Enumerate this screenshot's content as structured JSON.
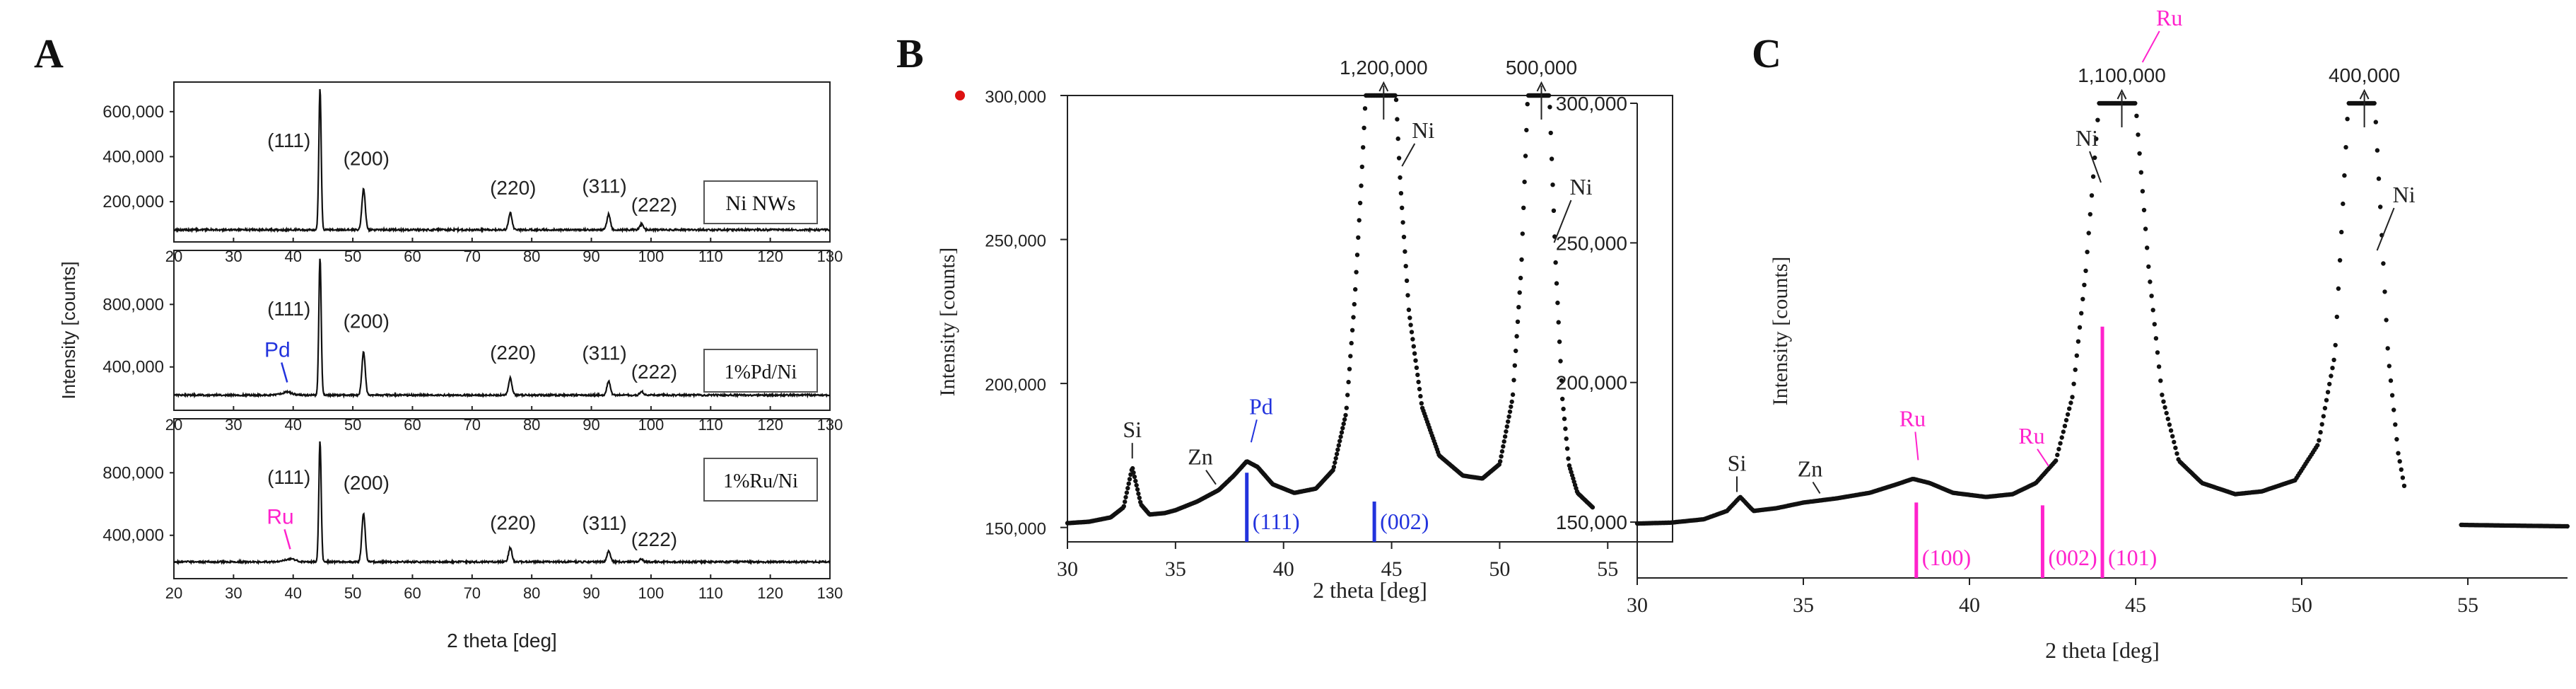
{
  "colors": {
    "ink": "#111111",
    "pd": "#2233dd",
    "ru": "#ff22cc",
    "marker": "#dd1111"
  },
  "panel_labels": {
    "a": "A",
    "b": "B",
    "c": "C"
  },
  "chart_data": [
    {
      "panel": "A",
      "type": "line",
      "xlabel": "2 theta [deg]",
      "ylabel": "Intensity [counts]",
      "xlim": [
        20,
        130
      ],
      "x_ticks": [
        20,
        30,
        40,
        50,
        60,
        70,
        80,
        90,
        100,
        110,
        120,
        130
      ],
      "peaks": [
        {
          "hkl": "(111)",
          "x": 44.5
        },
        {
          "hkl": "(200)",
          "x": 51.8
        },
        {
          "hkl": "(220)",
          "x": 76.4
        },
        {
          "hkl": "(311)",
          "x": 92.9
        },
        {
          "hkl": "(222)",
          "x": 98.4
        }
      ],
      "subplots": [
        {
          "name": "Ni NWs",
          "ylim": [
            40000,
            700000
          ],
          "y_ticks": [
            200000,
            400000,
            600000
          ],
          "y_tick_labels": [
            "200,000",
            "400,000",
            "600,000"
          ],
          "baseline": 75000,
          "peak_heights": [
            700000,
            255000,
            150000,
            145000,
            100000
          ],
          "extra": []
        },
        {
          "name": "1%Pd/Ni",
          "ylim": [
            150000,
            1100000
          ],
          "y_ticks": [
            400000,
            800000
          ],
          "y_tick_labels": [
            "400,000",
            "800,000"
          ],
          "baseline": 220000,
          "peak_heights": [
            1100000,
            495000,
            330000,
            310000,
            245000
          ],
          "extra": [
            {
              "label": "Pd",
              "x": 39.0,
              "color": "pd"
            }
          ]
        },
        {
          "name": "1%Ru/Ni",
          "ylim": [
            150000,
            1100000
          ],
          "y_ticks": [
            400000,
            800000
          ],
          "y_tick_labels": [
            "400,000",
            "800,000"
          ],
          "baseline": 230000,
          "peak_heights": [
            1000000,
            540000,
            320000,
            300000,
            250000
          ],
          "extra": [
            {
              "label": "Ru",
              "x": 39.5,
              "color": "ru"
            }
          ]
        }
      ]
    },
    {
      "panel": "B",
      "type": "line",
      "xlabel": "2 theta [deg]",
      "ylabel": "Intensity [counts]",
      "xlim": [
        30,
        58
      ],
      "ylim": [
        145000,
        300000
      ],
      "x_ticks": [
        30,
        35,
        40,
        45,
        50,
        55
      ],
      "y_ticks": [
        150000,
        200000,
        250000,
        300000
      ],
      "y_tick_labels": [
        "150,000",
        "200,000",
        "250,000",
        "300,000"
      ],
      "offscale_peaks": [
        {
          "label": "1,200,000",
          "x": 44.5
        },
        {
          "label": "500,000",
          "x": 51.8
        }
      ],
      "peak_annotations": [
        {
          "label": "Si",
          "x": 33.0
        },
        {
          "label": "Zn",
          "x": 37.0
        },
        {
          "label": "Pd",
          "x": 38.5
        },
        {
          "label": "Ni",
          "x": 44.5
        },
        {
          "label": "Ni",
          "x": 51.8
        }
      ],
      "reference_lines": [
        {
          "hkl": "(111)",
          "x": 38.3,
          "top": 169000
        },
        {
          "hkl": "(002)",
          "x": 44.2,
          "top": 159000
        }
      ],
      "profile": [
        [
          30,
          151500
        ],
        [
          31,
          152000
        ],
        [
          32,
          153500
        ],
        [
          32.6,
          157000
        ],
        [
          33,
          171000
        ],
        [
          33.4,
          158000
        ],
        [
          33.8,
          154500
        ],
        [
          34.5,
          155000
        ],
        [
          35,
          156000
        ],
        [
          36,
          159000
        ],
        [
          37,
          163000
        ],
        [
          37.7,
          168000
        ],
        [
          38.3,
          173000
        ],
        [
          38.8,
          171000
        ],
        [
          39.5,
          165000
        ],
        [
          40.5,
          162000
        ],
        [
          41.5,
          163500
        ],
        [
          42.3,
          170000
        ],
        [
          42.9,
          190000
        ],
        [
          43.3,
          230000
        ],
        [
          43.6,
          270000
        ],
        [
          43.8,
          300000
        ],
        [
          45.2,
          300000
        ],
        [
          45.4,
          270000
        ],
        [
          45.8,
          225000
        ],
        [
          46.4,
          192000
        ],
        [
          47.2,
          175000
        ],
        [
          48.3,
          168000
        ],
        [
          49.2,
          167000
        ],
        [
          50,
          172000
        ],
        [
          50.6,
          195000
        ],
        [
          51,
          240000
        ],
        [
          51.3,
          300000
        ],
        [
          52.3,
          300000
        ],
        [
          52.6,
          240000
        ],
        [
          52.9,
          195000
        ],
        [
          53.2,
          172000
        ],
        [
          53.6,
          162000
        ],
        [
          54.3,
          157000
        ]
      ]
    },
    {
      "panel": "C",
      "type": "line",
      "xlabel": "2 theta [deg]",
      "ylabel": "Intensity [counts]",
      "xlim": [
        30,
        58
      ],
      "ylim": [
        130000,
        300000
      ],
      "x_ticks": [
        30,
        35,
        40,
        45,
        50,
        55
      ],
      "y_ticks": [
        150000,
        200000,
        250000,
        300000
      ],
      "y_tick_labels": [
        "150,000",
        "200,000",
        "250,000",
        "300,000"
      ],
      "offscale_peaks": [
        {
          "label": "1,100,000",
          "x": 44.5
        },
        {
          "label": "400,000",
          "x": 51.8
        }
      ],
      "peak_annotations": [
        {
          "label": "Si",
          "x": 33.0
        },
        {
          "label": "Zn",
          "x": 35.5
        },
        {
          "label": "Ru",
          "x": 38.2
        },
        {
          "label": "Ru",
          "x": 42.0
        },
        {
          "label": "Ru",
          "x": 44.1
        },
        {
          "label": "Ni",
          "x": 44.0
        },
        {
          "label": "Ni",
          "x": 51.8
        }
      ],
      "reference_lines": [
        {
          "hkl": "(100)",
          "x": 38.4,
          "top": 157000
        },
        {
          "hkl": "(002)",
          "x": 42.2,
          "top": 156000
        },
        {
          "hkl": "(101)",
          "x": 44.0,
          "top": 220000
        }
      ],
      "profile": [
        [
          30,
          149500
        ],
        [
          31,
          149800
        ],
        [
          32,
          151000
        ],
        [
          32.7,
          154000
        ],
        [
          33.1,
          159000
        ],
        [
          33.5,
          154000
        ],
        [
          34.2,
          155000
        ],
        [
          35,
          157000
        ],
        [
          36,
          158500
        ],
        [
          37,
          160500
        ],
        [
          37.8,
          163500
        ],
        [
          38.3,
          165500
        ],
        [
          38.8,
          164000
        ],
        [
          39.5,
          160500
        ],
        [
          40.5,
          159000
        ],
        [
          41.3,
          160000
        ],
        [
          42,
          164000
        ],
        [
          42.6,
          172000
        ],
        [
          43.1,
          195000
        ],
        [
          43.5,
          240000
        ],
        [
          43.9,
          300000
        ],
        [
          45.0,
          300000
        ],
        [
          45.4,
          240000
        ],
        [
          45.8,
          195000
        ],
        [
          46.3,
          172000
        ],
        [
          47,
          164000
        ],
        [
          48,
          160000
        ],
        [
          48.8,
          161000
        ],
        [
          49.8,
          165000
        ],
        [
          50.5,
          178000
        ],
        [
          51,
          210000
        ],
        [
          51.4,
          300000
        ],
        [
          52.2,
          300000
        ],
        [
          52.6,
          210000
        ],
        [
          52.9,
          175000
        ],
        [
          53.1,
          162000
        ]
      ],
      "profile_tail": [
        [
          54.8,
          149000
        ],
        [
          56,
          148800
        ],
        [
          58,
          148500
        ]
      ]
    }
  ]
}
